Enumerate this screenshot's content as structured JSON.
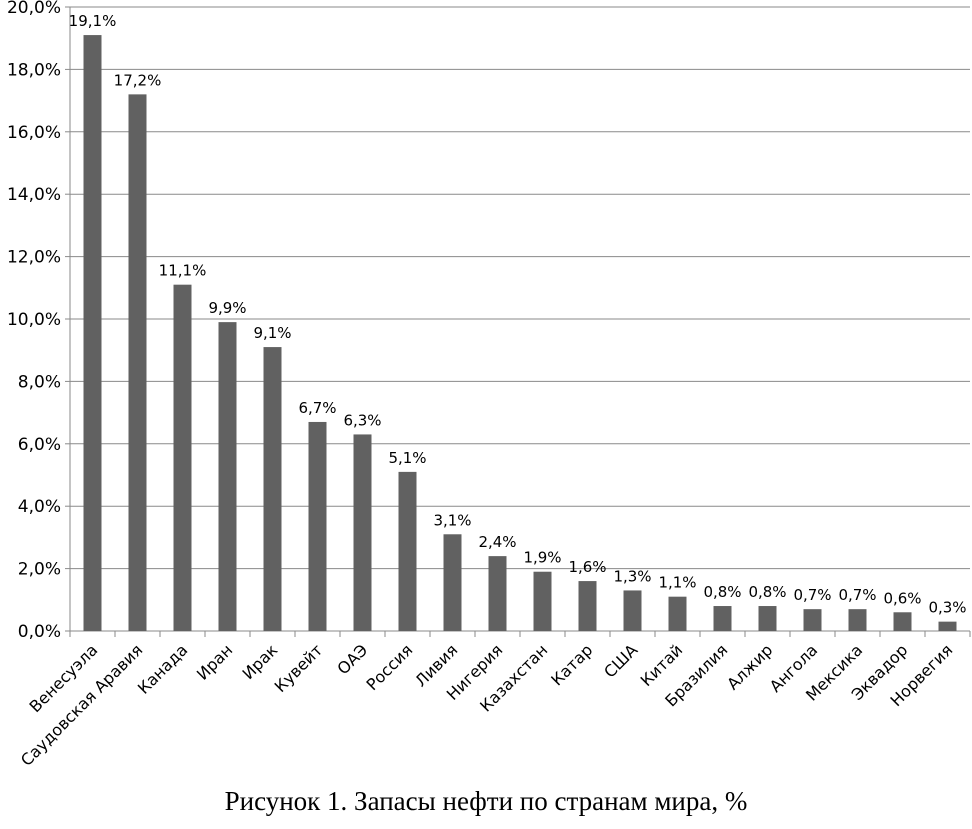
{
  "caption": "Рисунок 1. Запасы нефти по странам мира, %",
  "chart_data": {
    "type": "bar",
    "title": "",
    "xlabel": "",
    "ylabel": "",
    "ylim": [
      0,
      20
    ],
    "y_tick_labels": [
      "0,0%",
      "2,0%",
      "4,0%",
      "6,0%",
      "8,0%",
      "10,0%",
      "12,0%",
      "14,0%",
      "16,0%",
      "18,0%",
      "20,0%"
    ],
    "y_ticks": [
      0,
      2,
      4,
      6,
      8,
      10,
      12,
      14,
      16,
      18,
      20
    ],
    "grid": true,
    "legend": "none",
    "bar_color": "#616161",
    "categories": [
      "Венесуэла",
      "Саудовская Аравия",
      "Канада",
      "Иран",
      "Ирак",
      "Кувейт",
      "ОАЭ",
      "Россия",
      "Ливия",
      "Нигерия",
      "Казахстан",
      "Катар",
      "США",
      "Китай",
      "Бразилия",
      "Алжир",
      "Ангола",
      "Мексика",
      "Эквадор",
      "Норвегия"
    ],
    "values": [
      19.1,
      17.2,
      11.1,
      9.9,
      9.1,
      6.7,
      6.3,
      5.1,
      3.1,
      2.4,
      1.9,
      1.6,
      1.3,
      1.1,
      0.8,
      0.8,
      0.7,
      0.7,
      0.6,
      0.3
    ],
    "data_labels": [
      "19,1%",
      "17,2%",
      "11,1%",
      "9,9%",
      "9,1%",
      "6,7%",
      "6,3%",
      "5,1%",
      "3,1%",
      "2,4%",
      "1,9%",
      "1,6%",
      "1,3%",
      "1,1%",
      "0,8%",
      "0,8%",
      "0,7%",
      "0,7%",
      "0,6%",
      "0,3%"
    ]
  }
}
